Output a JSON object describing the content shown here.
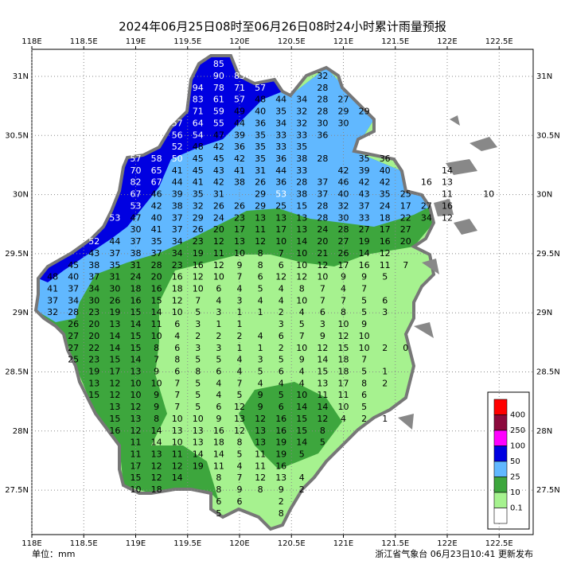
{
  "title": "2024年06月25日08时至06月26日08时24小时累计雨量预报",
  "unit": "单位：mm",
  "issuer": "浙江省气象台 06月23日10:41 更新发布",
  "lon_ticks": [
    {
      "value": 118,
      "label": "118E"
    },
    {
      "value": 118.5,
      "label": "118.5E"
    },
    {
      "value": 119,
      "label": "119E"
    },
    {
      "value": 119.5,
      "label": "119.5E"
    },
    {
      "value": 120,
      "label": "120E"
    },
    {
      "value": 120.5,
      "label": "120.5E"
    },
    {
      "value": 121,
      "label": "121E"
    },
    {
      "value": 121.5,
      "label": "121.5E"
    },
    {
      "value": 122,
      "label": "122E"
    },
    {
      "value": 122.5,
      "label": "122.5E"
    }
  ],
  "lat_ticks": [
    {
      "value": 31,
      "label": "31N"
    },
    {
      "value": 30.5,
      "label": "30.5N"
    },
    {
      "value": 30,
      "label": "30N"
    },
    {
      "value": 29.5,
      "label": "29.5N"
    },
    {
      "value": 29,
      "label": "29N"
    },
    {
      "value": 28.5,
      "label": "28.5N"
    },
    {
      "value": 28,
      "label": "28N"
    },
    {
      "value": 27.5,
      "label": "27.5N"
    }
  ],
  "legend": {
    "colors": [
      "#ff0000",
      "#8b0a3c",
      "#ff00ff",
      "#0000e1",
      "#61b8ff",
      "#3da63d",
      "#a6f28f",
      "#ffffff"
    ],
    "labels": [
      400,
      250,
      100,
      50,
      25,
      10,
      0.1
    ]
  },
  "rows": [
    {
      "lat": 31.1,
      "lon": [
        119.8
      ],
      "values": [
        85
      ]
    },
    {
      "lat": 31.0,
      "lon": [
        119.8,
        120.0,
        120.8
      ],
      "values": [
        90,
        83,
        32
      ]
    },
    {
      "lat": 30.9,
      "lon": [
        119.6,
        119.8,
        120.0,
        120.2,
        120.8
      ],
      "values": [
        94,
        78,
        71,
        57,
        28
      ]
    },
    {
      "lat": 30.8,
      "lon": [
        119.6,
        119.8,
        120.0,
        120.2,
        120.4,
        120.6,
        120.8,
        121.0
      ],
      "values": [
        83,
        61,
        57,
        48,
        44,
        34,
        28,
        27
      ]
    },
    {
      "lat": 30.7,
      "lon": [
        119.6,
        119.8,
        120.0,
        120.2,
        120.4,
        120.6,
        120.8,
        121.0,
        121.2
      ],
      "values": [
        71,
        59,
        49,
        40,
        35,
        32,
        28,
        29,
        29
      ]
    },
    {
      "lat": 30.6,
      "lon": [
        119.4,
        119.6,
        119.8,
        120.0,
        120.2,
        120.4,
        120.6,
        120.8,
        121.0
      ],
      "values": [
        57,
        64,
        55,
        44,
        36,
        34,
        32,
        30,
        30
      ]
    },
    {
      "lat": 30.5,
      "lon": [
        119.4,
        119.6,
        119.8,
        120.0,
        120.2,
        120.4,
        120.6,
        120.8
      ],
      "values": [
        56,
        54,
        47,
        39,
        35,
        33,
        33,
        36
      ]
    },
    {
      "lat": 30.4,
      "lon": [
        119.4,
        119.6,
        119.8,
        120.0,
        120.2,
        120.4,
        120.6
      ],
      "values": [
        52,
        48,
        42,
        36,
        35,
        33,
        35
      ]
    },
    {
      "lat": 30.3,
      "lon": [
        119.0,
        119.2,
        119.4,
        119.6,
        119.8,
        120.0,
        120.2,
        120.4,
        120.6,
        120.8,
        121.2,
        121.4
      ],
      "values": [
        57,
        58,
        50,
        45,
        45,
        42,
        35,
        36,
        38,
        28,
        35,
        36
      ]
    },
    {
      "lat": 30.2,
      "lon": [
        119.0,
        119.2,
        119.4,
        119.6,
        119.8,
        120.0,
        120.2,
        120.4,
        120.6,
        121.0,
        121.2,
        121.4,
        122.0
      ],
      "values": [
        70,
        65,
        41,
        45,
        43,
        41,
        31,
        44,
        33,
        42,
        39,
        40,
        14
      ]
    },
    {
      "lat": 30.1,
      "lon": [
        119.0,
        119.2,
        119.4,
        119.6,
        119.8,
        120.0,
        120.2,
        120.4,
        120.6,
        120.8,
        121.0,
        121.2,
        121.4,
        121.8,
        122.0
      ],
      "values": [
        82,
        67,
        44,
        41,
        42,
        38,
        26,
        36,
        28,
        37,
        46,
        42,
        42,
        16,
        13
      ]
    },
    {
      "lat": 30.0,
      "lon": [
        119.0,
        119.2,
        119.4,
        119.6,
        119.8,
        120.2,
        120.4,
        120.6,
        120.8,
        121.0,
        121.2,
        121.4,
        121.6,
        122.0,
        122.4
      ],
      "values": [
        67,
        46,
        39,
        35,
        31,
        29,
        53,
        38,
        37,
        40,
        43,
        35,
        25,
        11,
        10
      ]
    },
    {
      "lat": 29.9,
      "lon": [
        119.0,
        119.2,
        119.4,
        119.6,
        119.8,
        120.0,
        120.2,
        120.4,
        120.6,
        120.8,
        121.0,
        121.2,
        121.4,
        121.6,
        121.8,
        122.0
      ],
      "values": [
        53,
        42,
        38,
        32,
        26,
        26,
        29,
        25,
        15,
        28,
        32,
        37,
        24,
        17,
        27,
        16
      ]
    },
    {
      "lat": 29.8,
      "lon": [
        118.8,
        119.0,
        119.2,
        119.4,
        119.6,
        119.8,
        120.0,
        120.2,
        120.4,
        120.6,
        120.8,
        121.0,
        121.2,
        121.4,
        121.6,
        121.8,
        122.0
      ],
      "values": [
        53,
        47,
        40,
        37,
        29,
        24,
        23,
        13,
        13,
        13,
        28,
        30,
        33,
        18,
        22,
        34,
        12
      ]
    },
    {
      "lat": 29.7,
      "lon": [
        119.0,
        119.2,
        119.4,
        119.6,
        119.8,
        120.0,
        120.2,
        120.4,
        120.6,
        120.8,
        121.0,
        121.2,
        121.4,
        121.6
      ],
      "values": [
        30,
        41,
        37,
        26,
        20,
        17,
        11,
        17,
        13,
        24,
        28,
        27,
        17,
        27
      ]
    },
    {
      "lat": 29.6,
      "lon": [
        118.6,
        118.8,
        119.0,
        119.2,
        119.4,
        119.6,
        119.8,
        120.0,
        120.2,
        120.4,
        120.6,
        120.8,
        121.0,
        121.2,
        121.4,
        121.6
      ],
      "values": [
        52,
        44,
        37,
        35,
        34,
        23,
        12,
        13,
        12,
        10,
        14,
        20,
        27,
        19,
        16,
        20
      ]
    },
    {
      "lat": 29.5,
      "lon": [
        118.6,
        118.8,
        119.0,
        119.2,
        119.4,
        119.6,
        119.8,
        120.0,
        120.2,
        120.4,
        120.6,
        120.8,
        121.0,
        121.2,
        121.4
      ],
      "values": [
        43,
        37,
        38,
        37,
        34,
        19,
        11,
        10,
        8,
        7,
        10,
        21,
        26,
        14,
        12
      ]
    },
    {
      "lat": 29.4,
      "lon": [
        118.4,
        118.6,
        118.8,
        119.0,
        119.2,
        119.4,
        119.6,
        119.8,
        120.0,
        120.2,
        120.4,
        120.6,
        120.8,
        121.0,
        121.2,
        121.4,
        121.6
      ],
      "values": [
        45,
        38,
        35,
        31,
        28,
        23,
        16,
        12,
        9,
        8,
        6,
        10,
        12,
        17,
        16,
        11,
        7
      ]
    },
    {
      "lat": 29.3,
      "lon": [
        118.2,
        118.4,
        118.6,
        118.8,
        119.0,
        119.2,
        119.4,
        119.6,
        119.8,
        120.0,
        120.2,
        120.4,
        120.6,
        120.8,
        121.0,
        121.2,
        121.4
      ],
      "values": [
        48,
        40,
        37,
        31,
        24,
        20,
        16,
        12,
        10,
        7,
        6,
        12,
        12,
        10,
        9,
        9,
        5
      ]
    },
    {
      "lat": 29.2,
      "lon": [
        118.2,
        118.4,
        118.6,
        118.8,
        119.0,
        119.2,
        119.4,
        119.6,
        119.8,
        120.0,
        120.2,
        120.4,
        120.6,
        120.8,
        121.0,
        121.2
      ],
      "values": [
        41,
        37,
        34,
        30,
        18,
        16,
        18,
        10,
        6,
        4,
        5,
        4,
        8,
        7,
        4,
        7
      ]
    },
    {
      "lat": 29.1,
      "lon": [
        118.2,
        118.4,
        118.6,
        118.8,
        119.0,
        119.2,
        119.4,
        119.6,
        119.8,
        120.0,
        120.2,
        120.4,
        120.6,
        120.8,
        121.0,
        121.2,
        121.4
      ],
      "values": [
        37,
        34,
        30,
        26,
        16,
        15,
        12,
        7,
        4,
        3,
        4,
        4,
        10,
        7,
        7,
        5,
        6
      ]
    },
    {
      "lat": 29.0,
      "lon": [
        118.2,
        118.4,
        118.6,
        118.8,
        119.0,
        119.2,
        119.4,
        119.6,
        119.8,
        120.0,
        120.2,
        120.4,
        120.6,
        120.8,
        121.0,
        121.2,
        121.4
      ],
      "values": [
        32,
        28,
        23,
        19,
        15,
        14,
        10,
        5,
        3,
        1,
        1,
        2,
        4,
        6,
        8,
        5,
        3
      ]
    },
    {
      "lat": 28.9,
      "lon": [
        118.4,
        118.6,
        118.8,
        119.0,
        119.2,
        119.4,
        119.6,
        119.8,
        120.0,
        120.4,
        120.6,
        120.8,
        121.0,
        121.2
      ],
      "values": [
        26,
        20,
        13,
        14,
        11,
        6,
        3,
        1,
        1,
        3,
        5,
        3,
        10,
        9
      ]
    },
    {
      "lat": 28.8,
      "lon": [
        118.4,
        118.6,
        118.8,
        119.0,
        119.2,
        119.4,
        119.6,
        119.8,
        120.0,
        120.2,
        120.4,
        120.6,
        120.8,
        121.0,
        121.2
      ],
      "values": [
        27,
        20,
        14,
        15,
        10,
        4,
        2,
        2,
        2,
        4,
        6,
        7,
        9,
        12,
        10
      ]
    },
    {
      "lat": 28.7,
      "lon": [
        118.4,
        118.6,
        118.8,
        119.0,
        119.2,
        119.4,
        119.6,
        119.8,
        120.0,
        120.2,
        120.4,
        120.6,
        120.8,
        121.0,
        121.2,
        121.4,
        121.6
      ],
      "values": [
        27,
        22,
        14,
        15,
        8,
        6,
        3,
        3,
        1,
        1,
        2,
        10,
        12,
        15,
        10,
        2,
        0
      ]
    },
    {
      "lat": 28.6,
      "lon": [
        118.4,
        118.6,
        118.8,
        119.0,
        119.2,
        119.4,
        119.6,
        119.8,
        120.0,
        120.2,
        120.4,
        120.6,
        120.8,
        121.0,
        121.2
      ],
      "values": [
        25,
        23,
        15,
        14,
        7,
        8,
        5,
        5,
        4,
        3,
        5,
        9,
        14,
        18,
        7
      ]
    },
    {
      "lat": 28.5,
      "lon": [
        118.6,
        118.8,
        119.0,
        119.2,
        119.4,
        119.6,
        119.8,
        120.0,
        120.2,
        120.4,
        120.6,
        120.8,
        121.0,
        121.2,
        121.4
      ],
      "values": [
        19,
        17,
        13,
        9,
        6,
        8,
        6,
        4,
        5,
        6,
        4,
        15,
        18,
        5,
        1
      ]
    },
    {
      "lat": 28.4,
      "lon": [
        118.6,
        118.8,
        119.0,
        119.2,
        119.4,
        119.6,
        119.8,
        120.0,
        120.2,
        120.4,
        120.6,
        120.8,
        121.0,
        121.2,
        121.4
      ],
      "values": [
        13,
        12,
        10,
        10,
        7,
        5,
        4,
        7,
        4,
        4,
        4,
        13,
        17,
        8,
        2
      ]
    },
    {
      "lat": 28.3,
      "lon": [
        118.6,
        118.8,
        119.0,
        119.2,
        119.4,
        119.6,
        119.8,
        120.0,
        120.2,
        120.4,
        120.6,
        120.8,
        121.0,
        121.2
      ],
      "values": [
        15,
        12,
        10,
        9,
        7,
        5,
        4,
        5,
        9,
        5,
        10,
        11,
        11,
        6
      ]
    },
    {
      "lat": 28.2,
      "lon": [
        118.8,
        119.0,
        119.2,
        119.4,
        119.6,
        119.8,
        120.0,
        120.2,
        120.4,
        120.6,
        120.8,
        121.0,
        121.2
      ],
      "values": [
        13,
        12,
        9,
        7,
        5,
        6,
        12,
        9,
        6,
        14,
        14,
        10,
        5
      ]
    },
    {
      "lat": 28.1,
      "lon": [
        118.8,
        119.0,
        119.2,
        119.4,
        119.6,
        119.8,
        120.0,
        120.2,
        120.4,
        120.6,
        120.8,
        121.0,
        121.2,
        121.4
      ],
      "values": [
        15,
        13,
        8,
        10,
        10,
        9,
        13,
        12,
        16,
        15,
        12,
        4,
        2,
        1
      ]
    },
    {
      "lat": 28.0,
      "lon": [
        118.8,
        119.0,
        119.2,
        119.4,
        119.6,
        119.8,
        120.0,
        120.2,
        120.4,
        120.6,
        120.8
      ],
      "values": [
        16,
        12,
        14,
        13,
        13,
        16,
        12,
        13,
        16,
        15,
        8
      ]
    },
    {
      "lat": 27.9,
      "lon": [
        119.0,
        119.2,
        119.4,
        119.6,
        119.8,
        120.0,
        120.2,
        120.4,
        120.6,
        120.8
      ],
      "values": [
        11,
        14,
        10,
        13,
        18,
        8,
        13,
        19,
        14,
        5
      ]
    },
    {
      "lat": 27.8,
      "lon": [
        119.0,
        119.2,
        119.4,
        119.6,
        119.8,
        120.0,
        120.2,
        120.4,
        120.6
      ],
      "values": [
        11,
        13,
        11,
        14,
        14,
        5,
        11,
        19,
        5
      ]
    },
    {
      "lat": 27.7,
      "lon": [
        119.0,
        119.2,
        119.4,
        119.6,
        119.8,
        120.0,
        120.2,
        120.4
      ],
      "values": [
        17,
        12,
        12,
        19,
        11,
        4,
        11,
        16
      ]
    },
    {
      "lat": 27.6,
      "lon": [
        119.0,
        119.2,
        119.4,
        119.8,
        120.0,
        120.2,
        120.4,
        120.6
      ],
      "values": [
        15,
        12,
        14,
        8,
        7,
        12,
        13,
        4
      ]
    },
    {
      "lat": 27.5,
      "lon": [
        119.0,
        119.2,
        119.8,
        120.0,
        120.2,
        120.4,
        120.6
      ],
      "values": [
        10,
        18,
        8,
        9,
        8,
        9,
        2
      ]
    },
    {
      "lat": 27.4,
      "lon": [
        119.8,
        120.0,
        120.4
      ],
      "values": [
        6,
        6,
        2
      ]
    },
    {
      "lat": 27.3,
      "lon": [
        119.8,
        120.4
      ],
      "values": [
        5,
        8
      ]
    }
  ]
}
